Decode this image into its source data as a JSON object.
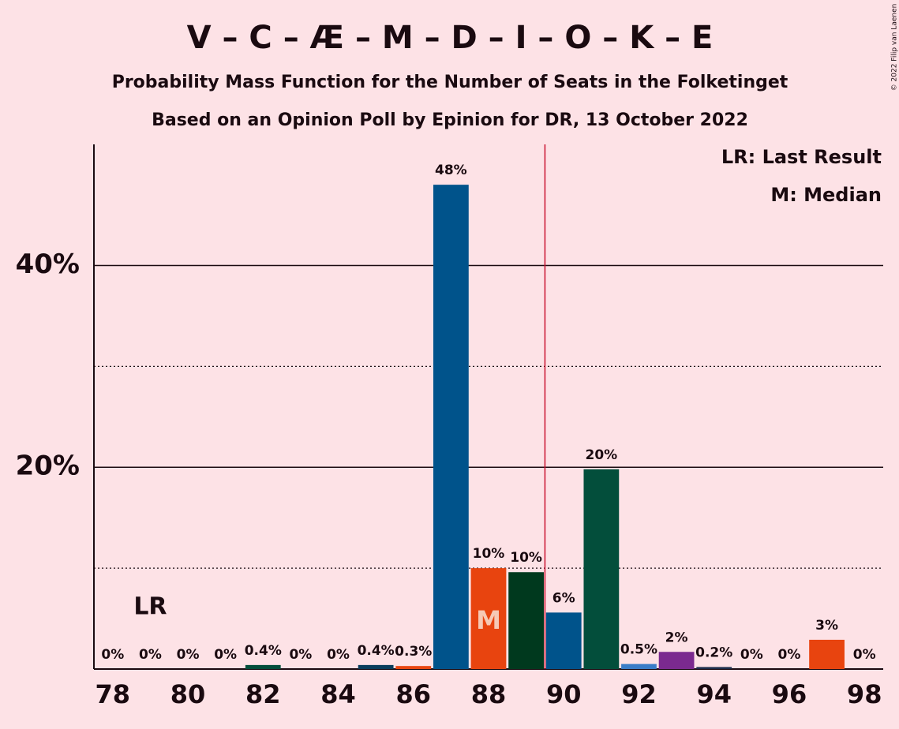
{
  "chart_data": {
    "type": "bar",
    "title": "V – C – Æ – M – D – I – O – K – E",
    "subtitle": "Probability Mass Function for the Number of Seats in the Folketinget",
    "subtitle2": "Based on an Opinion Poll by Epinion for DR, 13 October 2022",
    "copyright": "© 2022 Filip van Laenen",
    "legend_lr": "LR: Last Result",
    "legend_m": "M: Median",
    "lr_label": "LR",
    "lr_x": 79,
    "median_label": "M",
    "median_x": 88,
    "majority_x": 89.5,
    "x": [
      78,
      79,
      80,
      81,
      82,
      83,
      84,
      85,
      86,
      87,
      88,
      89,
      90,
      91,
      92,
      93,
      94,
      95,
      96,
      97,
      98
    ],
    "values": [
      0,
      0,
      0,
      0,
      0.4,
      0,
      0,
      0.4,
      0.3,
      48,
      10,
      9.6,
      5.6,
      19.8,
      0.5,
      1.7,
      0.2,
      0,
      0,
      2.9,
      0
    ],
    "value_labels": [
      "0%",
      "0%",
      "0%",
      "0%",
      "0.4%",
      "0%",
      "0%",
      "0.4%",
      "0.3%",
      "48%",
      "10%",
      "10%",
      "6%",
      "20%",
      "0.5%",
      "2%",
      "0.2%",
      "0%",
      "0%",
      "3%",
      "0%"
    ],
    "colors": [
      "#00538b",
      "#00538b",
      "#00538b",
      "#00538b",
      "#034e3b",
      "#00538b",
      "#00538b",
      "#0a3d5c",
      "#e8440f",
      "#00538b",
      "#e8440f",
      "#00391e",
      "#00538b",
      "#034e3b",
      "#3a7dc8",
      "#7b2a8f",
      "#1b2c4a",
      "#00538b",
      "#00538b",
      "#e8440f",
      "#00538b"
    ],
    "xlim": [
      77.5,
      98.5
    ],
    "xticks": [
      78,
      80,
      82,
      84,
      86,
      88,
      90,
      92,
      94,
      96,
      98
    ],
    "ylim": [
      0,
      52
    ],
    "yticks": [
      {
        "value": 20,
        "label": "20%"
      },
      {
        "value": 40,
        "label": "40%"
      }
    ],
    "minor_yticks": [
      10,
      30
    ],
    "grid": true
  }
}
